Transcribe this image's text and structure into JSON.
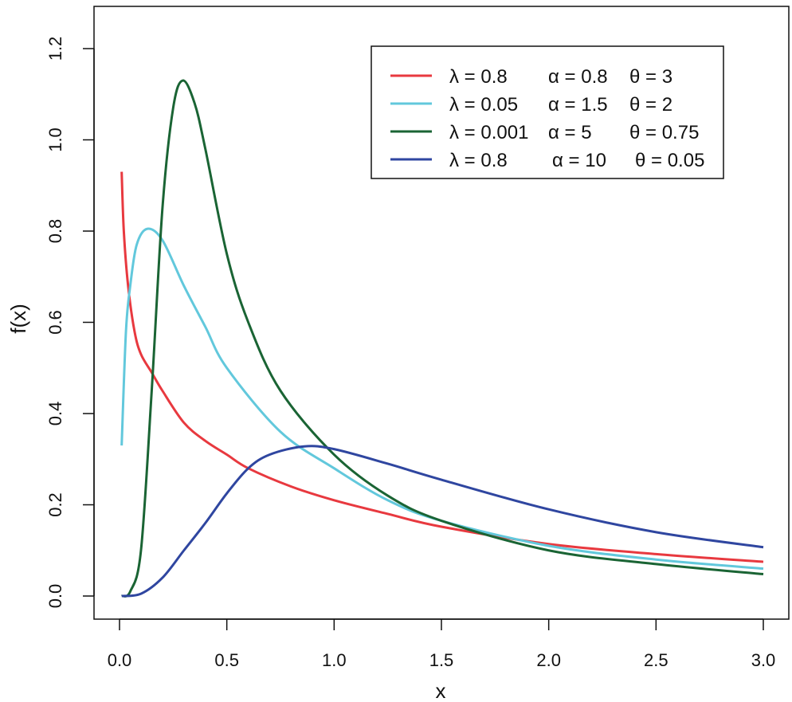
{
  "chart_data": {
    "type": "line",
    "title": "",
    "xlabel": "x",
    "ylabel": "f(x)",
    "xlim": [
      0,
      3
    ],
    "ylim": [
      0,
      1.2
    ],
    "xticks": [
      "0.0",
      "0.5",
      "1.0",
      "1.5",
      "2.0",
      "2.5",
      "3.0"
    ],
    "yticks": [
      "0.0",
      "0.2",
      "0.4",
      "0.6",
      "0.8",
      "1.0",
      "1.2"
    ],
    "grid": false,
    "legend_position": "top-right",
    "series": [
      {
        "name": "λ = 0.8 α = 0.8 θ = 3",
        "legend": {
          "lambda": "λ = 0.8",
          "alpha": "α = 0.8",
          "theta": "θ = 3"
        },
        "color": "#e8393f",
        "x": [
          0.01,
          0.02,
          0.04,
          0.07,
          0.1,
          0.15,
          0.2,
          0.3,
          0.4,
          0.5,
          0.6,
          0.8,
          1.0,
          1.25,
          1.5,
          2.0,
          2.5,
          3.0
        ],
        "y": [
          0.93,
          0.8,
          0.68,
          0.58,
          0.53,
          0.49,
          0.45,
          0.38,
          0.34,
          0.31,
          0.28,
          0.24,
          0.21,
          0.18,
          0.152,
          0.114,
          0.092,
          0.075
        ]
      },
      {
        "name": "λ = 0.05 α = 1.5 θ = 2",
        "legend": {
          "lambda": "λ = 0.05",
          "alpha": "α = 1.5",
          "theta": "θ = 2"
        },
        "color": "#62c8dc",
        "x": [
          0.01,
          0.03,
          0.05,
          0.08,
          0.13,
          0.2,
          0.3,
          0.4,
          0.5,
          0.75,
          1.0,
          1.25,
          1.5,
          2.0,
          2.5,
          3.0
        ],
        "y": [
          0.33,
          0.58,
          0.68,
          0.77,
          0.805,
          0.78,
          0.68,
          0.59,
          0.5,
          0.36,
          0.28,
          0.21,
          0.165,
          0.11,
          0.08,
          0.06
        ]
      },
      {
        "name": "λ = 0.001 α = 5 θ = 0.75",
        "legend": {
          "lambda": "λ = 0.001",
          "alpha": "α = 5",
          "theta": "θ = 0.75"
        },
        "color": "#1a6434",
        "x": [
          0.01,
          0.05,
          0.1,
          0.15,
          0.2,
          0.25,
          0.295,
          0.35,
          0.4,
          0.5,
          0.6,
          0.75,
          1.0,
          1.25,
          1.5,
          2.0,
          2.5,
          3.0
        ],
        "y": [
          0.0,
          0.01,
          0.1,
          0.45,
          0.85,
          1.07,
          1.13,
          1.08,
          0.98,
          0.75,
          0.6,
          0.45,
          0.31,
          0.22,
          0.165,
          0.1,
          0.07,
          0.048
        ]
      },
      {
        "name": "λ = 0.8 α = 10 θ = 0.05",
        "legend": {
          "lambda": "λ = 0.8",
          "alpha": "α = 10",
          "theta": "θ = 0.05"
        },
        "color": "#2f46a0",
        "x": [
          0.01,
          0.1,
          0.2,
          0.3,
          0.4,
          0.5,
          0.6,
          0.7,
          0.86,
          1.0,
          1.25,
          1.5,
          2.0,
          2.5,
          3.0
        ],
        "y": [
          0.0,
          0.005,
          0.04,
          0.1,
          0.16,
          0.225,
          0.28,
          0.31,
          0.328,
          0.322,
          0.29,
          0.255,
          0.19,
          0.14,
          0.107
        ]
      }
    ]
  }
}
